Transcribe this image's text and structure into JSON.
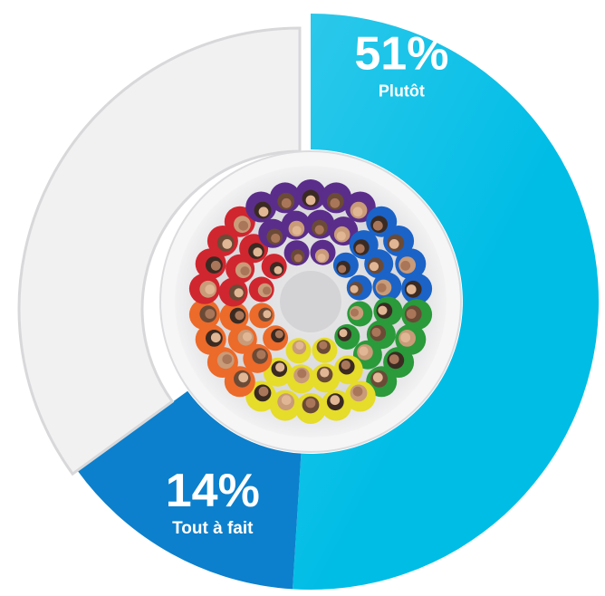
{
  "chart_data": {
    "type": "pie",
    "style": "donut",
    "slices": [
      {
        "value_label": "51%",
        "category_label": "Plutôt",
        "value": 51,
        "color": "#00bde6"
      },
      {
        "value_label": "14%",
        "category_label": "Tout à fait",
        "value": 14,
        "color": "#0c80cc"
      },
      {
        "value_label": "",
        "category_label": "",
        "value": 35,
        "color": "#f1f1f2"
      }
    ]
  },
  "center_image": {
    "description_icon": "crowd-photo-icon",
    "groups": [
      {
        "name": "purple",
        "color": "#5a2d8a"
      },
      {
        "name": "blue",
        "color": "#1b63c7"
      },
      {
        "name": "green",
        "color": "#2a9a3a"
      },
      {
        "name": "yellow",
        "color": "#e6dc2a"
      },
      {
        "name": "orange",
        "color": "#ec6a2a"
      },
      {
        "name": "red",
        "color": "#d0262f"
      }
    ]
  }
}
